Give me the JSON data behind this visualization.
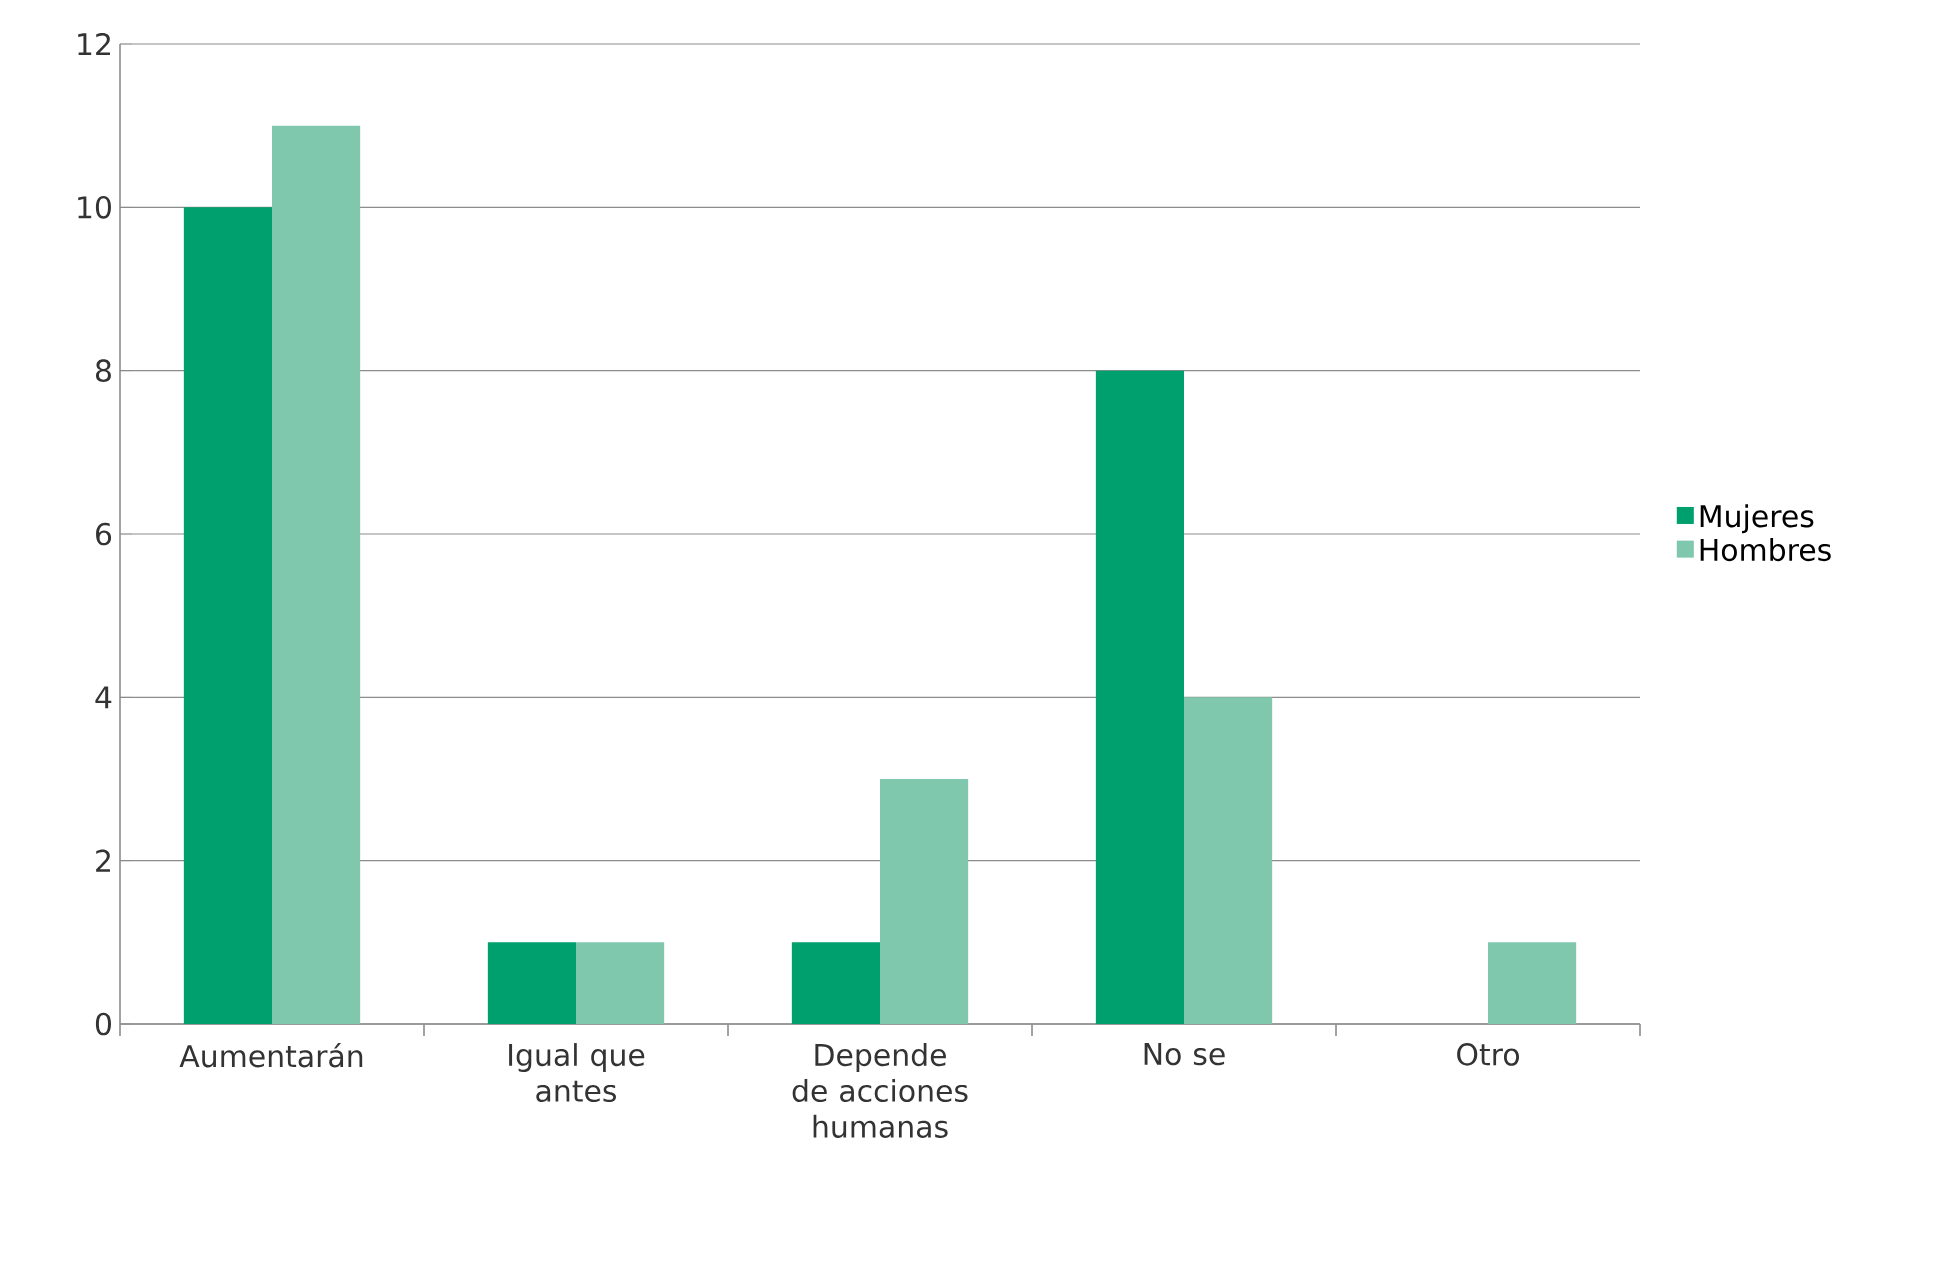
{
  "chart_data": {
    "type": "bar",
    "categories": [
      "Aumentarán",
      "Igual que antes",
      "Depende de acciones humanas",
      "No se",
      "Otro"
    ],
    "series": [
      {
        "name": "Mujeres",
        "color": "#00a06e",
        "values": [
          10,
          1,
          1,
          8,
          0
        ]
      },
      {
        "name": "Hombres",
        "color": "#7fc8ae",
        "values": [
          11,
          1,
          3,
          4,
          1
        ]
      }
    ],
    "ylim": [
      0,
      12
    ],
    "yticks": [
      0,
      2,
      4,
      6,
      8,
      10,
      12
    ],
    "grid": "y",
    "legend": "right"
  }
}
